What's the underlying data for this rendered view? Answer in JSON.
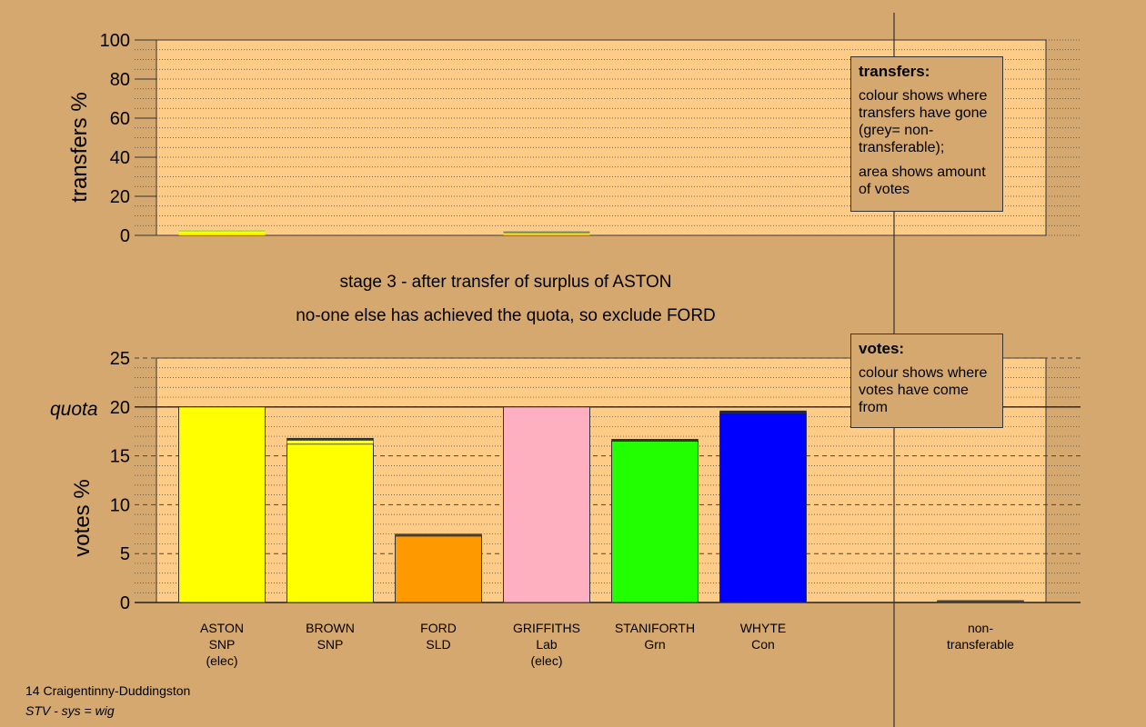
{
  "chart_data": [
    {
      "type": "bar",
      "title": "",
      "ylabel": "transfers %",
      "ylim": [
        0,
        100
      ],
      "yticks": [
        0,
        20,
        40,
        60,
        80,
        100
      ],
      "grid": "dotted every 5",
      "categories": [
        "ASTON",
        "BROWN",
        "FORD",
        "GRIFFITHS",
        "STANIFORTH",
        "WHYTE",
        "non-transferable"
      ],
      "values": [
        2.5,
        0,
        0,
        2.0,
        0,
        0,
        0
      ],
      "segments": [
        [
          {
            "value": 0.8,
            "color": "#ffdd00"
          },
          {
            "value": 1.5,
            "color": "#ffff00"
          },
          {
            "value": 0.2,
            "color": "#88cc44"
          }
        ],
        [],
        [],
        [
          {
            "value": 0.6,
            "color": "#ffcc44"
          },
          {
            "value": 0.8,
            "color": "#b8c840"
          },
          {
            "value": 0.6,
            "color": "#4477bb"
          }
        ],
        [],
        [],
        []
      ]
    },
    {
      "type": "bar",
      "title": "",
      "ylabel": "votes %",
      "ylim": [
        0,
        25
      ],
      "yticks": [
        0,
        5,
        10,
        15,
        20,
        25
      ],
      "quota": 20,
      "quota_label": "quota",
      "categories": [
        "ASTON",
        "BROWN",
        "FORD",
        "GRIFFITHS",
        "STANIFORTH",
        "WHYTE",
        "non-transferable"
      ],
      "series_colors": [
        "#ffff00",
        "#ffff00",
        "#ff9900",
        "#ffb0c0",
        "#22ff00",
        "#0000ff",
        "#888888"
      ],
      "values": [
        20.0,
        16.8,
        7.0,
        20.0,
        16.7,
        19.6,
        0.2
      ],
      "bases": [
        20.0,
        16.2,
        6.8,
        20.0,
        16.5,
        19.4,
        0.0
      ],
      "top_segments": [
        [],
        [
          {
            "value": 0.4,
            "color": "#ffff00"
          },
          {
            "value": 0.2,
            "color": "#333333"
          }
        ],
        [
          {
            "value": 0.2,
            "color": "#444444"
          }
        ],
        [],
        [
          {
            "value": 0.2,
            "color": "#333333"
          }
        ],
        [
          {
            "value": 0.2,
            "color": "#222222"
          }
        ],
        [
          {
            "value": 0.2,
            "color": "#444444"
          }
        ]
      ]
    }
  ],
  "candidates": [
    {
      "name": "ASTON",
      "party": "SNP",
      "status": "(elec)"
    },
    {
      "name": "BROWN",
      "party": "SNP",
      "status": ""
    },
    {
      "name": "FORD",
      "party": "SLD",
      "status": ""
    },
    {
      "name": "GRIFFITHS",
      "party": "Lab",
      "status": "(elec)"
    },
    {
      "name": "STANIFORTH",
      "party": "Grn",
      "status": ""
    },
    {
      "name": "WHYTE",
      "party": "Con",
      "status": ""
    },
    {
      "name": "non-",
      "party": "transferable",
      "status": ""
    }
  ],
  "captions": {
    "line1": "stage 3 - after transfer of surplus of ASTON",
    "line2": "no-one else has achieved the quota, so exclude FORD"
  },
  "legend_transfers": {
    "title": "transfers:",
    "p1": "colour shows where transfers have gone (grey= non-transferable);",
    "p2": "area shows amount of votes"
  },
  "legend_votes": {
    "title": "votes:",
    "p1": "colour shows where votes have come from"
  },
  "footer": {
    "ward": "14 Craigentinny-Duddingston",
    "system": "STV - sys = wig"
  },
  "colors": {
    "background": "#d4a86f",
    "plot_bg": "#ffcc88"
  }
}
